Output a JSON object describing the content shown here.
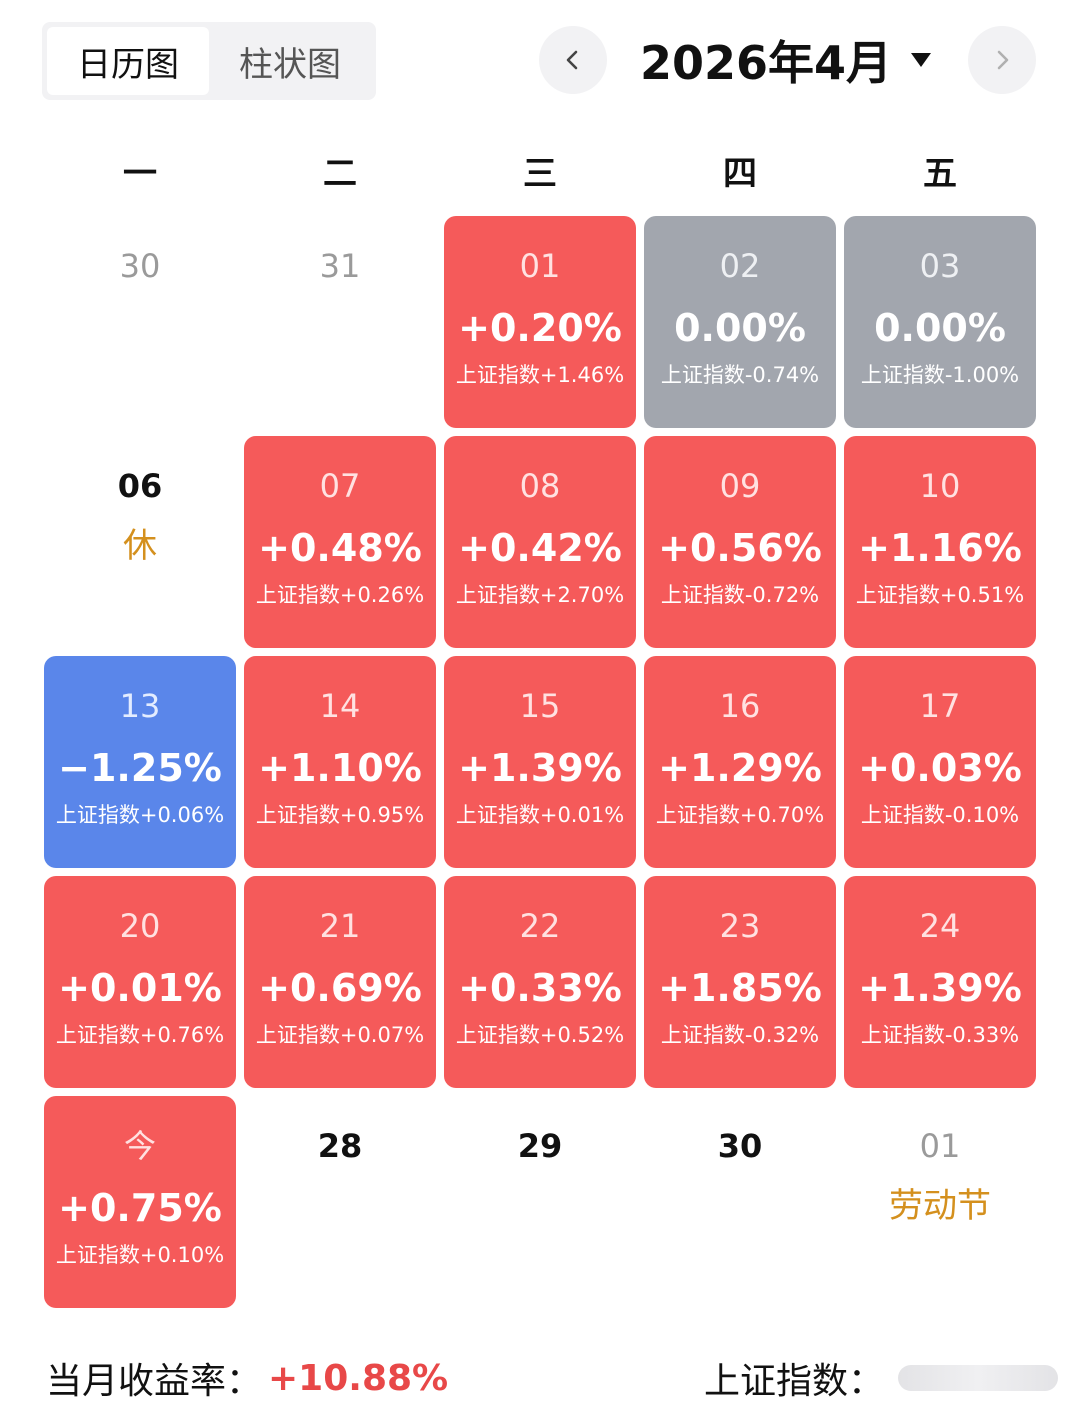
{
  "tabs": [
    {
      "label": "日历图",
      "active": true
    },
    {
      "label": "柱状图",
      "active": false
    }
  ],
  "header": {
    "month": "2026年4月",
    "prev_icon": "chevron-left-icon",
    "next_icon": "chevron-right-icon",
    "dropdown_icon": "caret-down-icon"
  },
  "weekdays": [
    "一",
    "二",
    "三",
    "四",
    "五"
  ],
  "calendar": {
    "r0": [
      {
        "day": "30",
        "kind": "muted"
      },
      {
        "day": "31",
        "kind": "muted"
      },
      {
        "day": "01",
        "return": "+0.20%",
        "index": "上证指数+1.46%",
        "kind": "up"
      },
      {
        "day": "02",
        "return": "0.00%",
        "index": "上证指数-0.74%",
        "kind": "flat"
      },
      {
        "day": "03",
        "return": "0.00%",
        "index": "上证指数-1.00%",
        "kind": "flat"
      }
    ],
    "r1": [
      {
        "day": "06",
        "note": "休",
        "kind": "rest"
      },
      {
        "day": "07",
        "return": "+0.48%",
        "index": "上证指数+0.26%",
        "kind": "up"
      },
      {
        "day": "08",
        "return": "+0.42%",
        "index": "上证指数+2.70%",
        "kind": "up"
      },
      {
        "day": "09",
        "return": "+0.56%",
        "index": "上证指数-0.72%",
        "kind": "up"
      },
      {
        "day": "10",
        "return": "+1.16%",
        "index": "上证指数+0.51%",
        "kind": "up"
      }
    ],
    "r2": [
      {
        "day": "13",
        "return": "−1.25%",
        "index": "上证指数+0.06%",
        "kind": "down"
      },
      {
        "day": "14",
        "return": "+1.10%",
        "index": "上证指数+0.95%",
        "kind": "up"
      },
      {
        "day": "15",
        "return": "+1.39%",
        "index": "上证指数+0.01%",
        "kind": "up"
      },
      {
        "day": "16",
        "return": "+1.29%",
        "index": "上证指数+0.70%",
        "kind": "up"
      },
      {
        "day": "17",
        "return": "+0.03%",
        "index": "上证指数-0.10%",
        "kind": "up"
      }
    ],
    "r3": [
      {
        "day": "20",
        "return": "+0.01%",
        "index": "上证指数+0.76%",
        "kind": "up"
      },
      {
        "day": "21",
        "return": "+0.69%",
        "index": "上证指数+0.07%",
        "kind": "up"
      },
      {
        "day": "22",
        "return": "+0.33%",
        "index": "上证指数+0.52%",
        "kind": "up"
      },
      {
        "day": "23",
        "return": "+1.85%",
        "index": "上证指数-0.32%",
        "kind": "up"
      },
      {
        "day": "24",
        "return": "+1.39%",
        "index": "上证指数-0.33%",
        "kind": "up"
      }
    ],
    "r4": [
      {
        "day": "今",
        "return": "+0.75%",
        "index": "上证指数+0.10%",
        "kind": "up"
      },
      {
        "day": "28",
        "kind": "future"
      },
      {
        "day": "29",
        "kind": "future"
      },
      {
        "day": "30",
        "kind": "future"
      },
      {
        "day": "01",
        "note": "劳动节",
        "kind": "holiday"
      }
    ]
  },
  "footer": {
    "monthly_label": "当月收益率：",
    "monthly_value": "+10.88%",
    "index_label": "上证指数："
  },
  "colors": {
    "up": "#f55a5a",
    "down": "#5a86ea",
    "flat": "#a2a6ae",
    "holiday_text": "#d4901e"
  }
}
